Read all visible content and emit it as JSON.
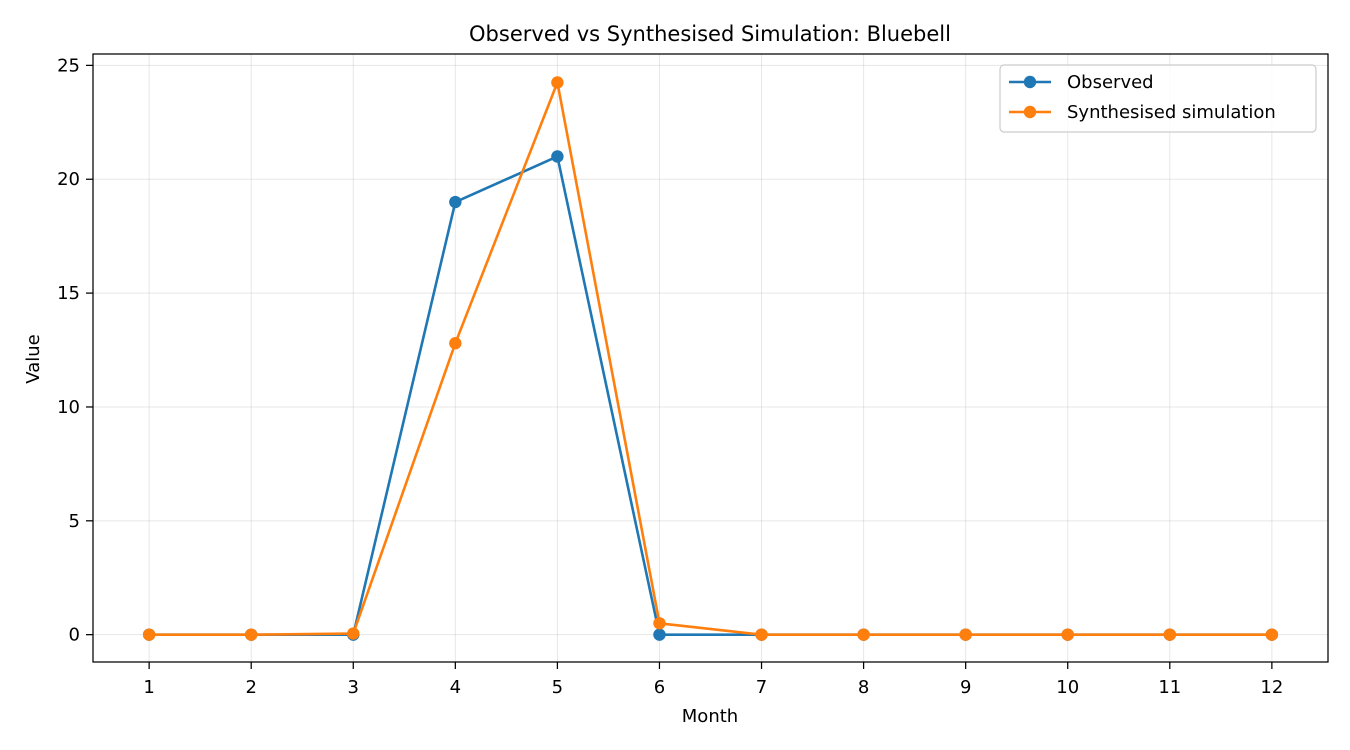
{
  "chart_data": {
    "type": "line",
    "title": "Observed vs Synthesised Simulation: Bluebell",
    "xlabel": "Month",
    "ylabel": "Value",
    "x": [
      1,
      2,
      3,
      4,
      5,
      6,
      7,
      8,
      9,
      10,
      11,
      12
    ],
    "xlim": [
      0.45,
      12.55
    ],
    "ylim": [
      -1.2,
      25.5
    ],
    "yticks": [
      0,
      5,
      10,
      15,
      20,
      25
    ],
    "grid": true,
    "legend_position": "top-right",
    "series": [
      {
        "name": "Observed",
        "color": "#1f77b4",
        "marker": "circle",
        "values": [
          0,
          0,
          0,
          19.0,
          21.0,
          0,
          0,
          0,
          0,
          0,
          0,
          0
        ]
      },
      {
        "name": "Synthesised simulation",
        "color": "#ff7f0e",
        "marker": "circle",
        "values": [
          0,
          0,
          0.05,
          12.8,
          24.25,
          0.5,
          0,
          0,
          0,
          0,
          0,
          0
        ]
      }
    ]
  }
}
